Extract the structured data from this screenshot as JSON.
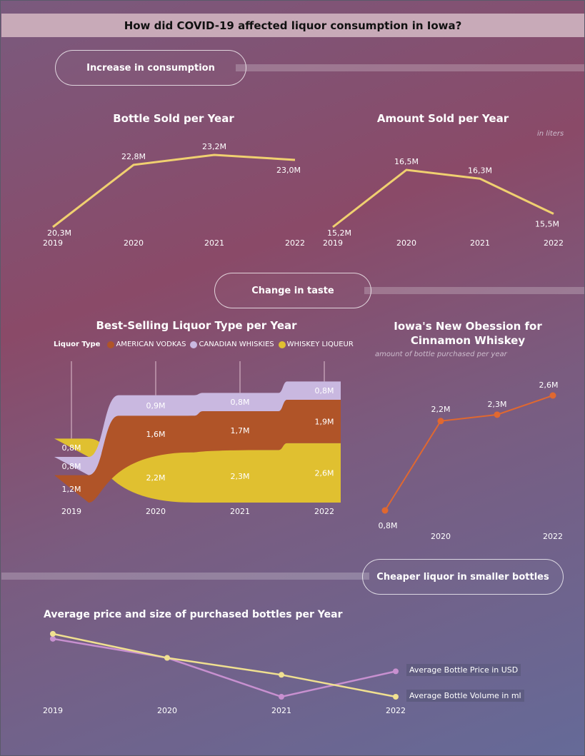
{
  "page_title": "How did COVID-19 affected liquor consumption in Iowa?",
  "sections": {
    "increase": "Increase in consumption",
    "taste": "Change in taste",
    "cheaper": "Cheaper liquor in smaller bottles"
  },
  "colors": {
    "line_yellow": "#f0d070",
    "vodka": "#b05428",
    "canadian": "#c9b8e0",
    "liqueur": "#e0c030",
    "cinnamon": "#e06830",
    "price": "#c890d0",
    "volume": "#f0e090"
  },
  "chart_data": [
    {
      "id": "bottles",
      "type": "line",
      "title": "Bottle Sold per Year",
      "x": [
        "2019",
        "2020",
        "2021",
        "2022"
      ],
      "values": [
        20.3,
        22.8,
        23.2,
        23.0
      ],
      "labels": [
        "20,3M",
        "22,8M",
        "23,2M",
        "23,0M"
      ]
    },
    {
      "id": "amount",
      "type": "line",
      "title": "Amount Sold per Year",
      "note": "in liters",
      "x": [
        "2019",
        "2020",
        "2021",
        "2022"
      ],
      "values": [
        15.2,
        16.5,
        16.3,
        15.5
      ],
      "labels": [
        "15,2M",
        "16,5M",
        "16,3M",
        "15,5M"
      ]
    },
    {
      "id": "liquor",
      "type": "area",
      "title": "Best-Selling Liquor Type per Year",
      "legend_title": "Liquor Type",
      "x": [
        "2019",
        "2020",
        "2021",
        "2022"
      ],
      "series": [
        {
          "name": "WHISKEY LIQUEUR",
          "values": [
            0.8,
            2.2,
            2.3,
            2.6
          ],
          "labels": [
            "0,8M",
            "2,2M",
            "2,3M",
            "2,6M"
          ]
        },
        {
          "name": "CANADIAN WHISKIES",
          "values": [
            0.8,
            0.9,
            0.8,
            0.8
          ],
          "labels": [
            "0,8M",
            "0,9M",
            "0,8M",
            "0,8M"
          ]
        },
        {
          "name": "AMERICAN VODKAS",
          "values": [
            1.2,
            1.6,
            1.7,
            1.9
          ],
          "labels": [
            "1,2M",
            "1,6M",
            "1,7M",
            "1,9M"
          ]
        }
      ],
      "legend_order": [
        "AMERICAN VODKAS",
        "CANADIAN WHISKIES",
        "WHISKEY LIQUEUR"
      ],
      "stack_order_2019": [
        "AMERICAN VODKAS",
        "CANADIAN WHISKIES",
        "WHISKEY LIQUEUR"
      ],
      "stack_order_other": [
        "WHISKEY LIQUEUR",
        "AMERICAN VODKAS",
        "CANADIAN WHISKIES"
      ]
    },
    {
      "id": "cinnamon",
      "type": "line",
      "title": "Iowa's New Obession for Cinnamon Whiskey",
      "note": "amount of bottle purchased per year",
      "x": [
        "2019",
        "2020",
        "2021",
        "2022"
      ],
      "x_labels": [
        "",
        "2020",
        "",
        "2022"
      ],
      "values": [
        0.8,
        2.2,
        2.3,
        2.6
      ],
      "labels": [
        "0,8M",
        "2,2M",
        "2,3M",
        "2,6M"
      ]
    },
    {
      "id": "avg",
      "type": "line",
      "title": "Average price and size of purchased bottles per Year",
      "x": [
        "2019",
        "2020",
        "2021",
        "2022"
      ],
      "series": [
        {
          "name": "Average Bottle Price in USD",
          "values": [
            0.82,
            0.55,
            0.0,
            0.36
          ]
        },
        {
          "name": "Average Bottle Volume in ml",
          "values": [
            0.89,
            0.55,
            0.31,
            0.0
          ]
        }
      ]
    }
  ]
}
